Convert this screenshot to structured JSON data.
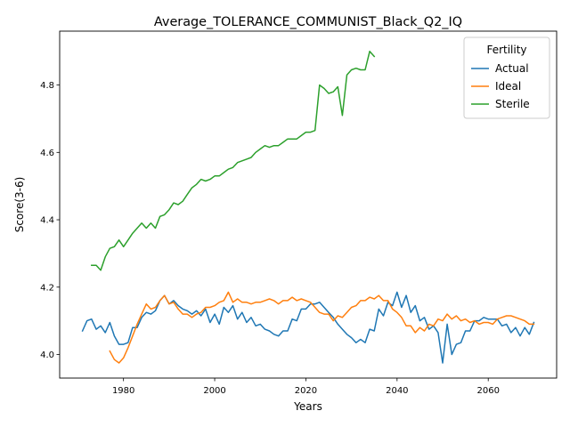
{
  "chart_data": {
    "type": "line",
    "title": "Average_TOLERANCE_COMMUNIST_Black_Q2_IQ",
    "xlabel": "Years",
    "ylabel": "Score(3-6)",
    "xlim": [
      1966,
      2075
    ],
    "ylim": [
      3.93,
      4.96
    ],
    "xticks": [
      1980,
      2000,
      2020,
      2040,
      2060
    ],
    "yticks": [
      4.0,
      4.2,
      4.4,
      4.6,
      4.8
    ],
    "xtick_labels": [
      "1980",
      "2000",
      "2020",
      "2040",
      "2060"
    ],
    "ytick_labels": [
      "4.0",
      "4.2",
      "4.4",
      "4.6",
      "4.8"
    ],
    "grid": false,
    "legend": {
      "title": "Fertility",
      "placement": "top-right"
    },
    "series": [
      {
        "name": "Actual",
        "color": "#1f77b4",
        "x": [
          1971,
          1972,
          1973,
          1974,
          1975,
          1976,
          1977,
          1978,
          1979,
          1980,
          1981,
          1982,
          1983,
          1984,
          1985,
          1986,
          1987,
          1988,
          1989,
          1990,
          1991,
          1992,
          1993,
          1994,
          1995,
          1996,
          1997,
          1998,
          1999,
          2000,
          2001,
          2002,
          2003,
          2004,
          2005,
          2006,
          2007,
          2008,
          2009,
          2010,
          2011,
          2012,
          2013,
          2014,
          2015,
          2016,
          2017,
          2018,
          2019,
          2020,
          2021,
          2022,
          2023,
          2024,
          2025,
          2026,
          2027,
          2028,
          2029,
          2030,
          2031,
          2032,
          2033,
          2034,
          2035,
          2036,
          2037,
          2038,
          2039,
          2040,
          2041,
          2042,
          2043,
          2044,
          2045,
          2046,
          2047,
          2048,
          2049,
          2050,
          2051,
          2052,
          2053,
          2054,
          2055,
          2056,
          2057,
          2058,
          2059,
          2060,
          2061,
          2062,
          2063,
          2064,
          2065,
          2066,
          2067,
          2068,
          2069,
          2070
        ],
        "values": [
          4.07,
          4.1,
          4.105,
          4.075,
          4.085,
          4.065,
          4.095,
          4.055,
          4.03,
          4.03,
          4.035,
          4.08,
          4.08,
          4.11,
          4.125,
          4.12,
          4.13,
          4.16,
          4.175,
          4.15,
          4.16,
          4.145,
          4.135,
          4.13,
          4.12,
          4.13,
          4.115,
          4.135,
          4.095,
          4.12,
          4.09,
          4.14,
          4.125,
          4.145,
          4.105,
          4.125,
          4.095,
          4.11,
          4.085,
          4.09,
          4.075,
          4.07,
          4.06,
          4.055,
          4.07,
          4.07,
          4.105,
          4.1,
          4.135,
          4.135,
          4.15,
          4.15,
          4.155,
          4.14,
          4.125,
          4.11,
          4.09,
          4.075,
          4.06,
          4.05,
          4.035,
          4.045,
          4.035,
          4.075,
          4.07,
          4.135,
          4.115,
          4.155,
          4.145,
          4.185,
          4.14,
          4.175,
          4.125,
          4.145,
          4.1,
          4.11,
          4.075,
          4.085,
          4.065,
          3.975,
          4.09,
          4.0,
          4.03,
          4.035,
          4.07,
          4.07,
          4.1,
          4.1,
          4.11,
          4.105,
          4.105,
          4.105,
          4.085,
          4.09,
          4.065,
          4.08,
          4.055,
          4.08,
          4.06,
          4.095
        ]
      },
      {
        "name": "Ideal",
        "color": "#ff7f0e",
        "x": [
          1977,
          1978,
          1979,
          1980,
          1981,
          1982,
          1983,
          1984,
          1985,
          1986,
          1987,
          1988,
          1989,
          1990,
          1991,
          1992,
          1993,
          1994,
          1995,
          1996,
          1997,
          1998,
          1999,
          2000,
          2001,
          2002,
          2003,
          2004,
          2005,
          2006,
          2007,
          2008,
          2009,
          2010,
          2011,
          2012,
          2013,
          2014,
          2015,
          2016,
          2017,
          2018,
          2019,
          2020,
          2021,
          2022,
          2023,
          2024,
          2025,
          2026,
          2027,
          2028,
          2029,
          2030,
          2031,
          2032,
          2033,
          2034,
          2035,
          2036,
          2037,
          2038,
          2039,
          2040,
          2041,
          2042,
          2043,
          2044,
          2045,
          2046,
          2047,
          2048,
          2049,
          2050,
          2051,
          2052,
          2053,
          2054,
          2055,
          2056,
          2057,
          2058,
          2059,
          2060,
          2061,
          2062,
          2063,
          2064,
          2065,
          2066,
          2067,
          2068,
          2069,
          2070
        ],
        "values": [
          4.01,
          3.985,
          3.975,
          3.99,
          4.02,
          4.055,
          4.09,
          4.12,
          4.15,
          4.135,
          4.14,
          4.16,
          4.175,
          4.15,
          4.155,
          4.135,
          4.12,
          4.12,
          4.11,
          4.12,
          4.125,
          4.14,
          4.14,
          4.145,
          4.155,
          4.16,
          4.185,
          4.155,
          4.165,
          4.155,
          4.155,
          4.15,
          4.155,
          4.155,
          4.16,
          4.165,
          4.16,
          4.15,
          4.16,
          4.16,
          4.17,
          4.16,
          4.165,
          4.16,
          4.155,
          4.14,
          4.125,
          4.12,
          4.12,
          4.1,
          4.115,
          4.11,
          4.125,
          4.14,
          4.145,
          4.16,
          4.16,
          4.17,
          4.165,
          4.175,
          4.16,
          4.16,
          4.135,
          4.125,
          4.11,
          4.085,
          4.085,
          4.065,
          4.08,
          4.07,
          4.09,
          4.085,
          4.105,
          4.1,
          4.12,
          4.105,
          4.115,
          4.1,
          4.105,
          4.095,
          4.1,
          4.09,
          4.095,
          4.095,
          4.09,
          4.105,
          4.11,
          4.115,
          4.115,
          4.11,
          4.105,
          4.1,
          4.09,
          4.09
        ]
      },
      {
        "name": "Sterile",
        "color": "#2ca02c",
        "x": [
          1973,
          1974,
          1975,
          1976,
          1977,
          1978,
          1979,
          1980,
          1981,
          1982,
          1983,
          1984,
          1985,
          1986,
          1987,
          1988,
          1989,
          1990,
          1991,
          1992,
          1993,
          1994,
          1995,
          1996,
          1997,
          1998,
          1999,
          2000,
          2001,
          2002,
          2003,
          2004,
          2005,
          2006,
          2007,
          2008,
          2009,
          2010,
          2011,
          2012,
          2013,
          2014,
          2015,
          2016,
          2017,
          2018,
          2019,
          2020,
          2021,
          2022,
          2023,
          2024,
          2025,
          2026,
          2027,
          2028,
          2029,
          2030,
          2031,
          2032,
          2033,
          2034,
          2035
        ],
        "values": [
          4.265,
          4.265,
          4.25,
          4.29,
          4.315,
          4.32,
          4.34,
          4.32,
          4.34,
          4.36,
          4.375,
          4.39,
          4.375,
          4.39,
          4.375,
          4.41,
          4.415,
          4.43,
          4.45,
          4.445,
          4.455,
          4.475,
          4.495,
          4.505,
          4.52,
          4.515,
          4.52,
          4.53,
          4.53,
          4.54,
          4.55,
          4.555,
          4.57,
          4.575,
          4.58,
          4.585,
          4.6,
          4.61,
          4.62,
          4.615,
          4.62,
          4.62,
          4.63,
          4.64,
          4.64,
          4.64,
          4.65,
          4.66,
          4.66,
          4.665,
          4.8,
          4.79,
          4.775,
          4.78,
          4.795,
          4.71,
          4.83,
          4.845,
          4.85,
          4.845,
          4.845,
          4.9,
          4.885
        ]
      }
    ]
  }
}
